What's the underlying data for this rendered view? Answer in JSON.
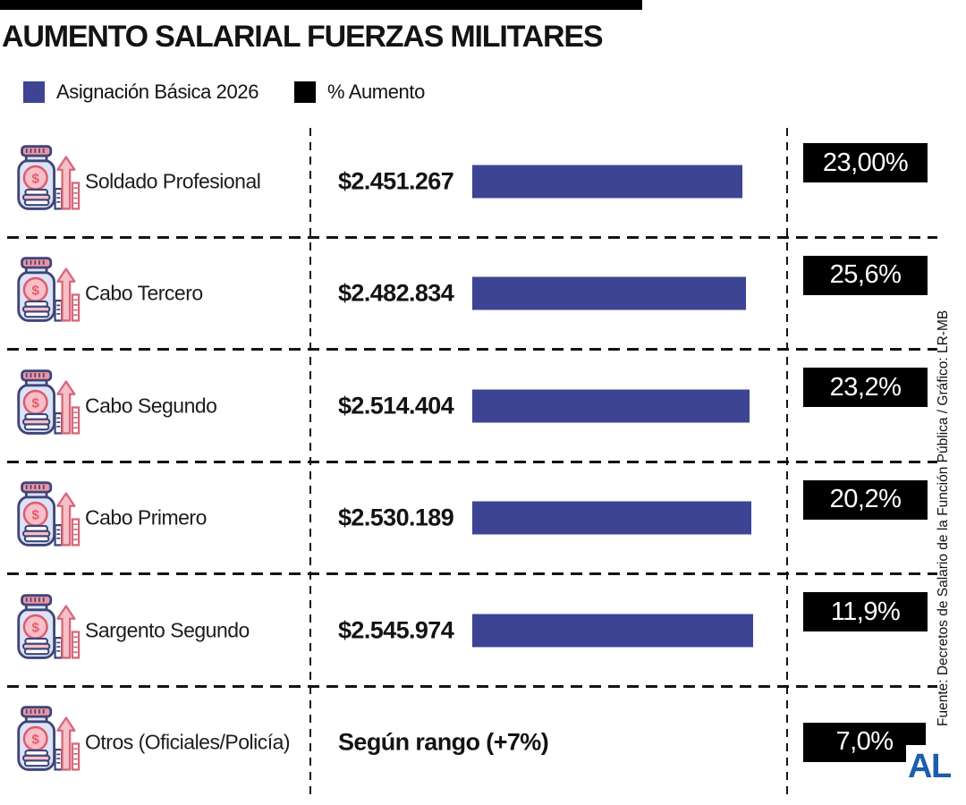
{
  "title": "AUMENTO SALARIAL FUERZAS MILITARES",
  "legend": {
    "items": [
      {
        "label": "Asignación Básica 2026",
        "color": "#3d4494"
      },
      {
        "label": "% Aumento",
        "color": "#000000"
      }
    ]
  },
  "chart_data": {
    "type": "bar",
    "orientation": "horizontal",
    "title": "AUMENTO SALARIAL FUERZAS MILITARES",
    "categories": [
      "Soldado Profesional",
      "Cabo Tercero",
      "Cabo Segundo",
      "Cabo Primero",
      "Sargento Segundo",
      "Otros (Oficiales/Policía)"
    ],
    "series": [
      {
        "name": "Asignación Básica 2026",
        "unit": "COP",
        "values": [
          2451267,
          2482834,
          2514404,
          2530189,
          2545974,
          null
        ],
        "labels": [
          "$2.451.267",
          "$2.482.834",
          "$2.514.404",
          "$2.530.189",
          "$2.545.974",
          "Según rango (+7%)"
        ]
      },
      {
        "name": "% Aumento",
        "unit": "%",
        "values": [
          23.0,
          25.6,
          23.2,
          20.2,
          11.9,
          7.0
        ],
        "labels": [
          "23,00%",
          "25,6%",
          "23,2%",
          "20,2%",
          "11,9%",
          "7,0%"
        ]
      }
    ],
    "bar_color": "#3d4494",
    "pct_box_color": "#000000",
    "legend_position": "top-left",
    "grid": "dashed-row-separators"
  },
  "source": "Fuente: Decretos de Salario de la Función Pública / Gráfico: LR-MB",
  "logo": "AL",
  "colors": {
    "bar_blue": "#3d4494",
    "box_black": "#000000",
    "logo_blue": "#1d5dab",
    "icon_navy": "#3f4578",
    "icon_light": "#dce3f5",
    "icon_pink": "#f8bfc6",
    "icon_red": "#e05a70"
  }
}
